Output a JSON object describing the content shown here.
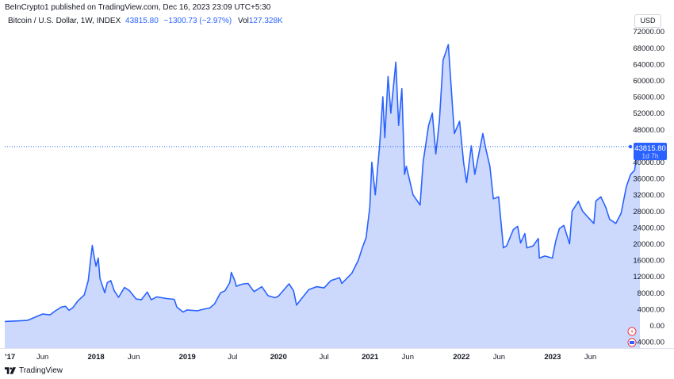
{
  "header": {
    "published": "BeInCrypto1 published on TradingView.com, Dec 16, 2023 23:09 UTC+5:30",
    "symbol": "Bitcoin / U.S. Dollar, 1W, INDEX",
    "last": "43815.80",
    "change": "−1300.73 (−2.97%)",
    "volume_label": "Vol",
    "volume": "127.328K"
  },
  "currency_button": "USD",
  "price_label": {
    "value": "43815.80",
    "countdown": "1d 7h"
  },
  "footer": {
    "brand": "TradingView"
  },
  "colors": {
    "line": "#2962ff",
    "fill": "#ccd9fd",
    "accent": "#2962ff"
  },
  "chart_data": {
    "type": "area",
    "title": "",
    "xlabel": "",
    "ylabel": "",
    "ylim": [
      -6000,
      74000
    ],
    "y_ticks": [
      "72000.00",
      "68000.00",
      "64000.00",
      "60000.00",
      "56000.00",
      "52000.00",
      "48000.00",
      "44000.00",
      "40000.00",
      "36000.00",
      "32000.00",
      "28000.00",
      "24000.00",
      "20000.00",
      "16000.00",
      "12000.00",
      "8000.00",
      "4000.00",
      "0.00",
      "−4000.00"
    ],
    "x_ticks": [
      {
        "label": "’17",
        "date": "2017-01-01",
        "year": true
      },
      {
        "label": "Jun",
        "date": "2017-06-01",
        "year": false
      },
      {
        "label": "2018",
        "date": "2018-01-01",
        "year": true
      },
      {
        "label": "Jun",
        "date": "2018-06-01",
        "year": false
      },
      {
        "label": "2019",
        "date": "2019-01-01",
        "year": true
      },
      {
        "label": "Jul",
        "date": "2019-07-01",
        "year": false
      },
      {
        "label": "2020",
        "date": "2020-01-01",
        "year": true
      },
      {
        "label": "Jul",
        "date": "2020-07-01",
        "year": false
      },
      {
        "label": "2021",
        "date": "2021-01-01",
        "year": true
      },
      {
        "label": "Jun",
        "date": "2021-06-01",
        "year": false
      },
      {
        "label": "2022",
        "date": "2022-01-01",
        "year": true
      },
      {
        "label": "Jun",
        "date": "2022-06-01",
        "year": false
      },
      {
        "label": "2023",
        "date": "2023-01-01",
        "year": true
      },
      {
        "label": "Jun",
        "date": "2023-06-01",
        "year": false
      }
    ],
    "series": [
      {
        "points": [
          [
            "2017-01-01",
            1000
          ],
          [
            "2017-02-15",
            1100
          ],
          [
            "2017-04-01",
            1250
          ],
          [
            "2017-05-01",
            2000
          ],
          [
            "2017-06-01",
            2800
          ],
          [
            "2017-07-01",
            2600
          ],
          [
            "2017-07-20",
            3500
          ],
          [
            "2017-08-15",
            4500
          ],
          [
            "2017-09-01",
            4700
          ],
          [
            "2017-09-15",
            3700
          ],
          [
            "2017-10-01",
            4400
          ],
          [
            "2017-10-20",
            6000
          ],
          [
            "2017-11-15",
            7500
          ],
          [
            "2017-12-01",
            11000
          ],
          [
            "2017-12-10",
            16000
          ],
          [
            "2017-12-17",
            19600
          ],
          [
            "2017-12-24",
            17000
          ],
          [
            "2018-01-01",
            14500
          ],
          [
            "2018-01-10",
            16500
          ],
          [
            "2018-01-17",
            11500
          ],
          [
            "2018-02-05",
            8000
          ],
          [
            "2018-02-15",
            10500
          ],
          [
            "2018-03-01",
            11000
          ],
          [
            "2018-03-15",
            8500
          ],
          [
            "2018-04-01",
            6900
          ],
          [
            "2018-04-25",
            9300
          ],
          [
            "2018-05-15",
            8500
          ],
          [
            "2018-06-10",
            6500
          ],
          [
            "2018-07-01",
            6300
          ],
          [
            "2018-07-25",
            8200
          ],
          [
            "2018-08-10",
            6300
          ],
          [
            "2018-09-01",
            7000
          ],
          [
            "2018-10-10",
            6600
          ],
          [
            "2018-11-10",
            6400
          ],
          [
            "2018-11-20",
            4500
          ],
          [
            "2018-12-15",
            3300
          ],
          [
            "2019-01-01",
            3800
          ],
          [
            "2019-02-10",
            3600
          ],
          [
            "2019-03-01",
            3900
          ],
          [
            "2019-04-01",
            4300
          ],
          [
            "2019-04-20",
            5300
          ],
          [
            "2019-05-14",
            8000
          ],
          [
            "2019-06-01",
            8500
          ],
          [
            "2019-06-20",
            10500
          ],
          [
            "2019-06-26",
            13000
          ],
          [
            "2019-07-10",
            11000
          ],
          [
            "2019-07-16",
            9600
          ],
          [
            "2019-08-01",
            10000
          ],
          [
            "2019-08-15",
            10200
          ],
          [
            "2019-09-01",
            10300
          ],
          [
            "2019-09-25",
            8300
          ],
          [
            "2019-10-26",
            9500
          ],
          [
            "2019-11-20",
            7300
          ],
          [
            "2019-12-18",
            6800
          ],
          [
            "2020-01-01",
            7200
          ],
          [
            "2020-02-12",
            10200
          ],
          [
            "2020-03-01",
            8500
          ],
          [
            "2020-03-13",
            5000
          ],
          [
            "2020-04-01",
            6500
          ],
          [
            "2020-05-01",
            8800
          ],
          [
            "2020-06-01",
            9500
          ],
          [
            "2020-07-01",
            9200
          ],
          [
            "2020-07-28",
            11000
          ],
          [
            "2020-09-01",
            11700
          ],
          [
            "2020-09-10",
            10300
          ],
          [
            "2020-10-20",
            12800
          ],
          [
            "2020-11-15",
            16000
          ],
          [
            "2020-12-01",
            19000
          ],
          [
            "2020-12-16",
            21500
          ],
          [
            "2020-12-31",
            29000
          ],
          [
            "2021-01-08",
            40000
          ],
          [
            "2021-01-22",
            32000
          ],
          [
            "2021-02-08",
            44000
          ],
          [
            "2021-02-21",
            56000
          ],
          [
            "2021-03-01",
            46000
          ],
          [
            "2021-03-14",
            61000
          ],
          [
            "2021-03-25",
            52000
          ],
          [
            "2021-04-14",
            64500
          ],
          [
            "2021-04-25",
            49000
          ],
          [
            "2021-05-08",
            58000
          ],
          [
            "2021-05-19",
            37000
          ],
          [
            "2021-05-26",
            39000
          ],
          [
            "2021-06-22",
            32000
          ],
          [
            "2021-07-20",
            29500
          ],
          [
            "2021-08-01",
            40000
          ],
          [
            "2021-08-23",
            49000
          ],
          [
            "2021-09-07",
            52000
          ],
          [
            "2021-09-21",
            42000
          ],
          [
            "2021-10-05",
            50000
          ],
          [
            "2021-10-20",
            65000
          ],
          [
            "2021-11-10",
            68800
          ],
          [
            "2021-11-26",
            54000
          ],
          [
            "2021-12-04",
            47000
          ],
          [
            "2021-12-25",
            50000
          ],
          [
            "2022-01-10",
            40000
          ],
          [
            "2022-01-22",
            35000
          ],
          [
            "2022-02-10",
            44000
          ],
          [
            "2022-02-24",
            37000
          ],
          [
            "2022-03-28",
            47000
          ],
          [
            "2022-04-10",
            43000
          ],
          [
            "2022-04-25",
            39000
          ],
          [
            "2022-05-09",
            31000
          ],
          [
            "2022-05-30",
            31500
          ],
          [
            "2022-06-13",
            22500
          ],
          [
            "2022-06-18",
            19000
          ],
          [
            "2022-07-01",
            19500
          ],
          [
            "2022-07-28",
            23500
          ],
          [
            "2022-08-14",
            24300
          ],
          [
            "2022-08-26",
            20200
          ],
          [
            "2022-09-12",
            22500
          ],
          [
            "2022-09-20",
            19000
          ],
          [
            "2022-10-15",
            19500
          ],
          [
            "2022-11-05",
            21300
          ],
          [
            "2022-11-09",
            16500
          ],
          [
            "2022-12-01",
            17000
          ],
          [
            "2022-12-31",
            16500
          ],
          [
            "2023-01-14",
            20800
          ],
          [
            "2023-01-28",
            23700
          ],
          [
            "2023-02-15",
            24500
          ],
          [
            "2023-03-10",
            20000
          ],
          [
            "2023-03-20",
            28000
          ],
          [
            "2023-04-14",
            30400
          ],
          [
            "2023-05-01",
            28000
          ],
          [
            "2023-05-15",
            27000
          ],
          [
            "2023-06-15",
            25000
          ],
          [
            "2023-06-23",
            30500
          ],
          [
            "2023-07-13",
            31500
          ],
          [
            "2023-08-01",
            29000
          ],
          [
            "2023-08-17",
            26000
          ],
          [
            "2023-09-11",
            25000
          ],
          [
            "2023-10-02",
            27500
          ],
          [
            "2023-10-23",
            34000
          ],
          [
            "2023-11-09",
            37000
          ],
          [
            "2023-11-25",
            38000
          ],
          [
            "2023-12-04",
            42000
          ],
          [
            "2023-12-09",
            44500
          ],
          [
            "2023-12-16",
            43815.8
          ]
        ]
      }
    ]
  }
}
